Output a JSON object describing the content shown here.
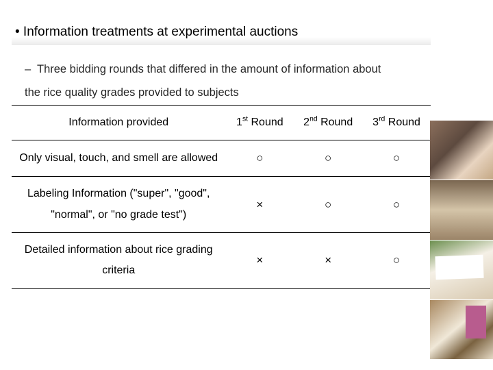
{
  "title": "• Information treatments at experimental auctions",
  "bullet": {
    "dash": "–",
    "text": "Three bidding rounds that differed in the amount of information about the rice quality grades provided to subjects"
  },
  "table": {
    "header_info": "Information provided",
    "round1": {
      "ord": "st",
      "num": "1",
      "word": " Round"
    },
    "round2": {
      "ord": "nd",
      "num": "2",
      "word": " Round"
    },
    "round3": {
      "ord": "rd",
      "num": "3",
      "word": " Round"
    },
    "rows": [
      {
        "label": "Only visual, touch, and smell are allowed",
        "r1": "○",
        "r2": "○",
        "r3": "○"
      },
      {
        "label": "Labeling Information (\"super\", \"good\", \"normal\", or \"no grade test\")",
        "r1": "×",
        "r2": "○",
        "r3": "○"
      },
      {
        "label": "Detailed information about rice grading criteria",
        "r1": "×",
        "r2": "×",
        "r3": "○"
      }
    ]
  },
  "marks": {
    "circle_color": "#000000",
    "cross_color": "#000000"
  }
}
